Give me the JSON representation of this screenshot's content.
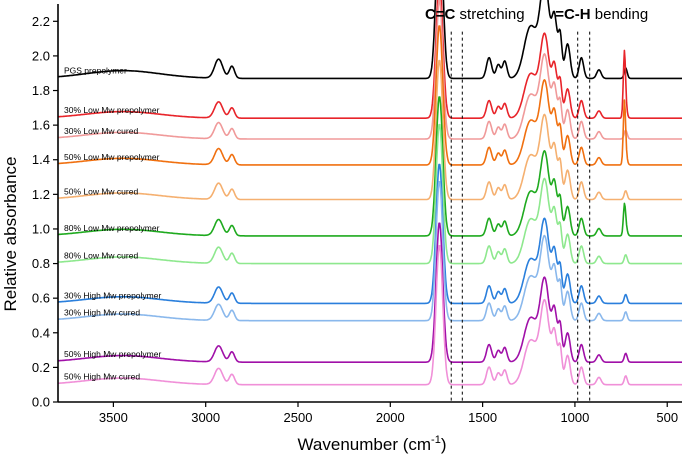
{
  "chart_data": {
    "type": "line",
    "xlabel": "Wavenumber (cm",
    "xlabel_sup": "-1",
    "xlabel_end": ")",
    "ylabel": "Relative absorbance",
    "xlim": [
      3800,
      420
    ],
    "ylim": [
      0.0,
      2.3
    ],
    "x_ticks": [
      3500,
      3000,
      2500,
      2000,
      1500,
      1000,
      500
    ],
    "y_ticks": [
      0.0,
      0.2,
      0.4,
      0.6,
      0.8,
      1.0,
      1.2,
      1.4,
      1.6,
      1.8,
      2.0,
      2.2
    ],
    "y_tick_labels": [
      "0.0",
      "0.2",
      "0.4",
      "0.6",
      "0.8",
      "1.0",
      "1.2",
      "1.4",
      "1.6",
      "1.8",
      "2.0",
      "2.2"
    ],
    "annotations": [
      {
        "name": "cc-stretching",
        "bold": "C=C",
        "rest": " stretching",
        "x_range": [
          1670,
          1610
        ]
      },
      {
        "name": "ch-bending",
        "bold": "=C-H",
        "rest": " bending",
        "x_range": [
          985,
          920
        ]
      }
    ],
    "series": [
      {
        "name": "PGS prepolymer",
        "color": "#000000",
        "baseline": 1.87,
        "scale": 1.0,
        "c873": false
      },
      {
        "name": "30% Low Mw prepolymer",
        "color": "#e8242a",
        "baseline": 1.64,
        "scale": 0.85,
        "c873": true,
        "c873_h": 0.42
      },
      {
        "name": "30% Low Mw cured",
        "color": "#f09a9a",
        "baseline": 1.52,
        "scale": 0.85,
        "c873": false
      },
      {
        "name": "50% Low Mw prepolymer",
        "color": "#f07010",
        "baseline": 1.37,
        "scale": 0.85,
        "c873": true,
        "c873_h": 0.4
      },
      {
        "name": "50% Low Mw cured",
        "color": "#f5b070",
        "baseline": 1.17,
        "scale": 0.85,
        "c873": false
      },
      {
        "name": "80% Low Mw prepolymer",
        "color": "#1faa1f",
        "baseline": 0.96,
        "scale": 0.85,
        "c873": true,
        "c873_h": 0.18
      },
      {
        "name": "80% Low Mw cured",
        "color": "#8ee88e",
        "baseline": 0.8,
        "scale": 0.85,
        "c873": false
      },
      {
        "name": "30% High Mw prepolymer",
        "color": "#2a7fdc",
        "baseline": 0.57,
        "scale": 0.85,
        "c873": false
      },
      {
        "name": "30% High Mw cured",
        "color": "#8ab8ec",
        "baseline": 0.47,
        "scale": 0.85,
        "c873": false
      },
      {
        "name": "50% High Mw prepolymer",
        "color": "#a010a8",
        "baseline": 0.23,
        "scale": 0.85,
        "c873": false
      },
      {
        "name": "50% High Mw cured",
        "color": "#f090d8",
        "baseline": 0.1,
        "scale": 0.85,
        "c873": false
      }
    ]
  }
}
